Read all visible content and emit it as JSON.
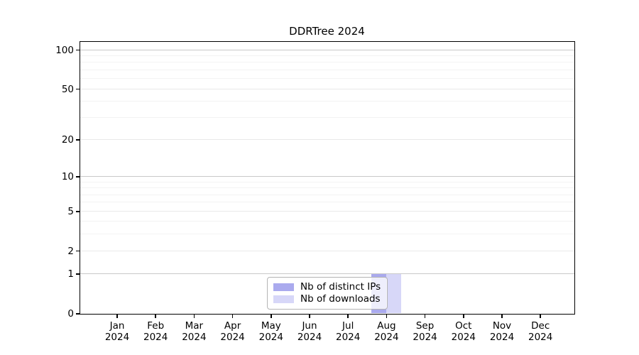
{
  "title": "DDRTree 2024",
  "chart_data": {
    "type": "bar",
    "title": "DDRTree 2024",
    "categories": [
      "Jan",
      "Feb",
      "Mar",
      "Apr",
      "May",
      "Jun",
      "Jul",
      "Aug",
      "Sep",
      "Oct",
      "Nov",
      "Dec"
    ],
    "year": "2024",
    "series": [
      {
        "name": "Nb of distinct IPs",
        "color": "#aaaaee",
        "values": [
          0,
          0,
          0,
          0,
          0,
          0,
          0,
          1,
          0,
          0,
          0,
          0
        ]
      },
      {
        "name": "Nb of downloads",
        "color": "#d7d7f8",
        "values": [
          0,
          0,
          0,
          0,
          0,
          0,
          0,
          1,
          0,
          0,
          0,
          0
        ]
      }
    ],
    "xlabel": "",
    "ylabel": "",
    "y_ticks": [
      0,
      1,
      2,
      5,
      10,
      20,
      50,
      100
    ],
    "y_tick_labels": [
      "0",
      "1",
      "2",
      "5",
      "10",
      "20",
      "50",
      "100"
    ],
    "y_scale": "log10(1+y)",
    "ylim": [
      0,
      117
    ],
    "grid": "horizontal",
    "grid_values_minor": [
      3,
      4,
      6,
      7,
      8,
      9,
      30,
      40,
      60,
      70,
      80,
      90
    ],
    "grid_values_major": [
      2,
      5,
      20,
      50
    ],
    "grid_values_emphasis": [
      1,
      10,
      100
    ],
    "legend_position": "bottom-center"
  },
  "colors": {
    "bar_ips": "#aaaaee",
    "bar_downloads": "#d7d7f8",
    "grid_minor": "#f3f3f3",
    "grid_major": "#e9e9e9",
    "grid_emphasis": "#c9c9c9",
    "frame": "#000000",
    "legend_border": "#b4b4b4",
    "background": "#ffffff"
  }
}
